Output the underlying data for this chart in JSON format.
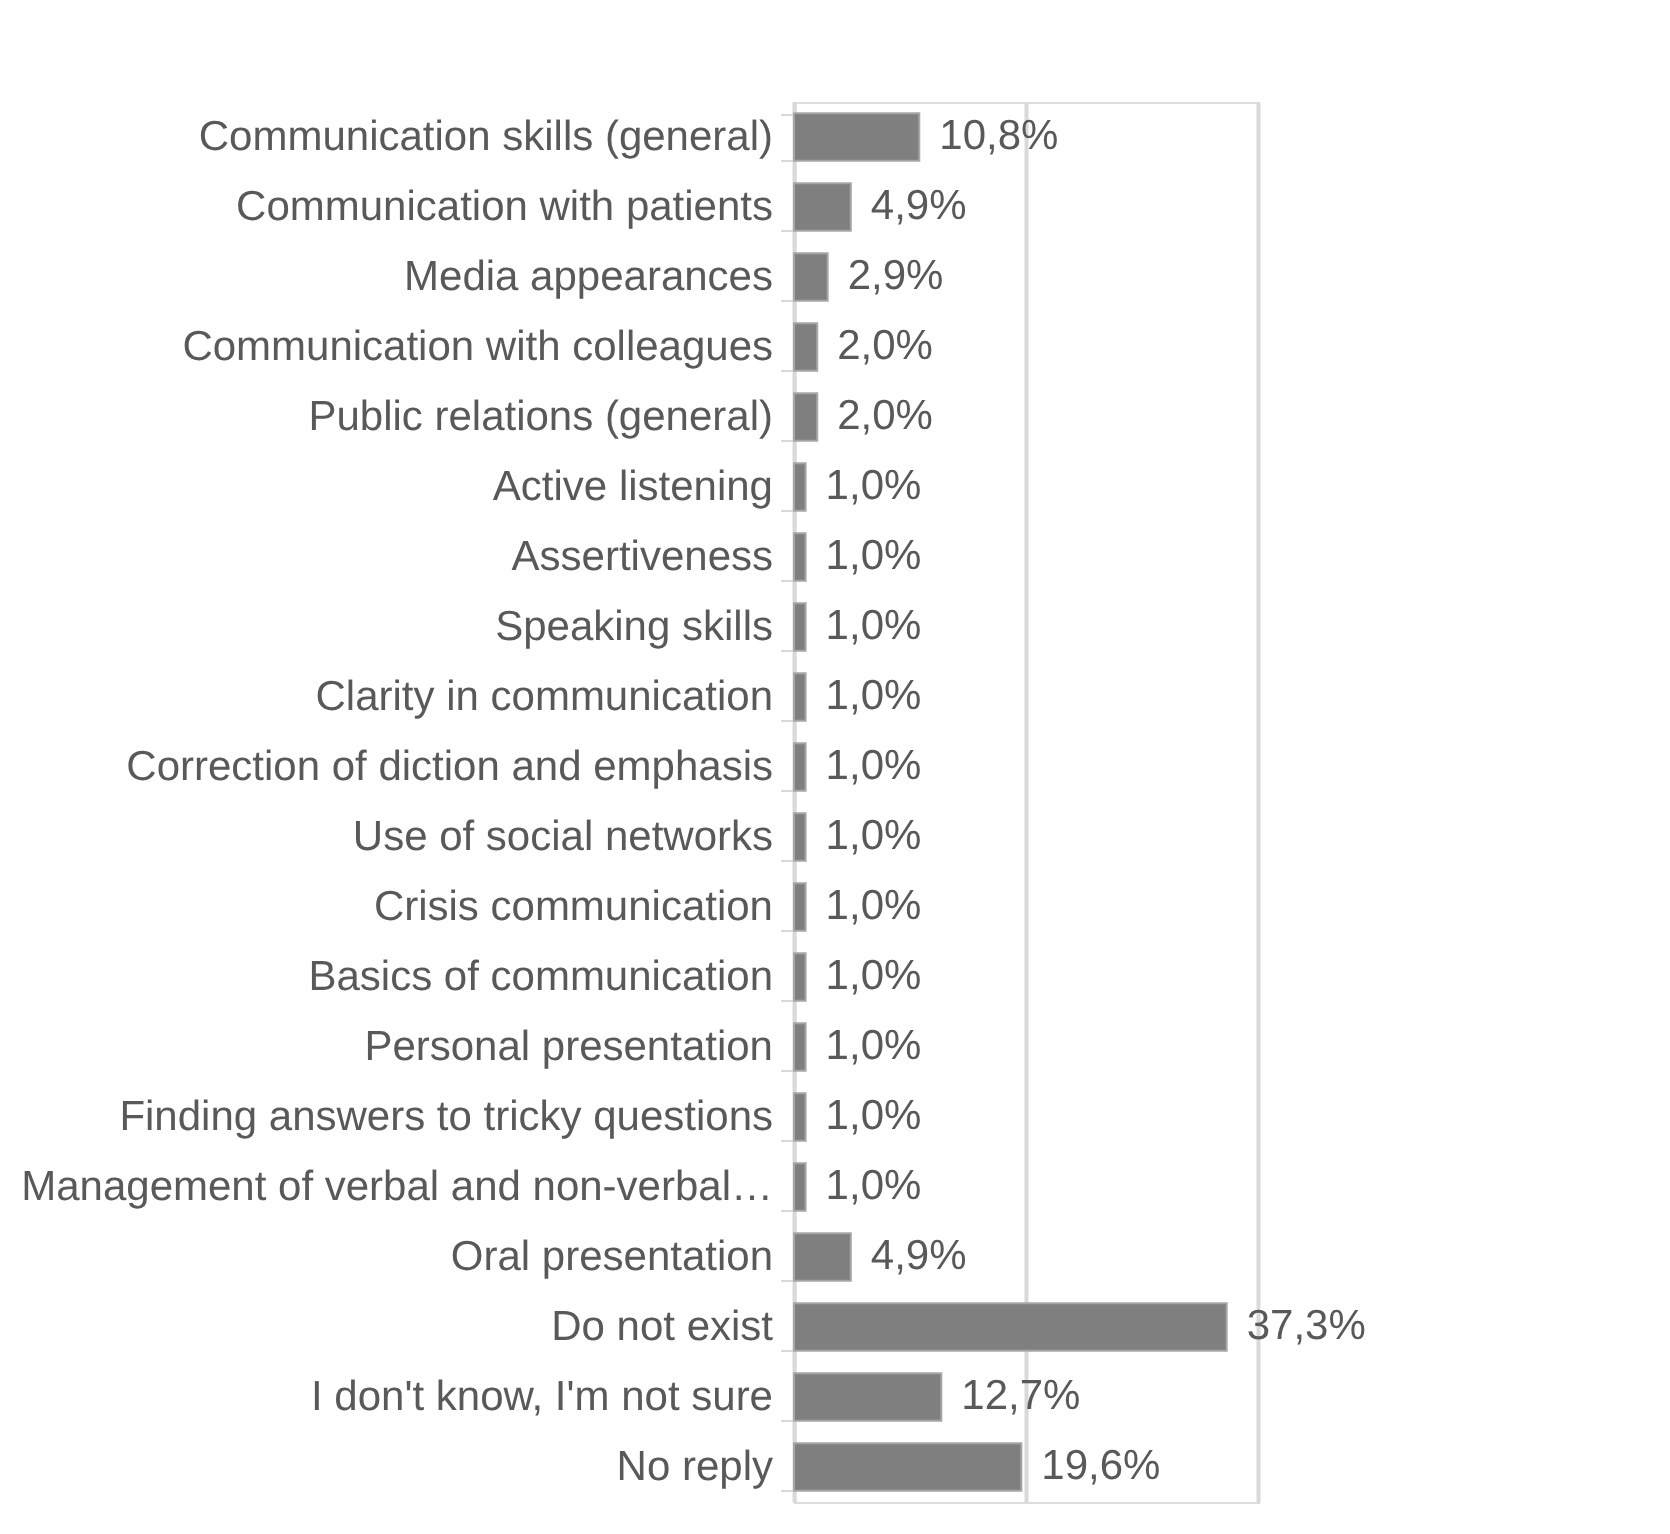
{
  "chart_data": {
    "type": "bar",
    "orientation": "horizontal",
    "categories": [
      "Communication skills (general)",
      "Communication with patients",
      "Media appearances",
      "Communication with colleagues",
      "Public relations (general)",
      "Active listening",
      "Assertiveness",
      "Speaking skills",
      "Clarity in communication",
      "Correction of diction and emphasis",
      "Use of social networks",
      "Crisis communication",
      "Basics of communication",
      "Personal presentation",
      "Finding answers to tricky questions",
      "Management of verbal and non-verbal…",
      "Oral presentation",
      "Do not exist",
      "I don't know, I'm not sure",
      "No reply"
    ],
    "values": [
      10.8,
      4.9,
      2.9,
      2.0,
      2.0,
      1.0,
      1.0,
      1.0,
      1.0,
      1.0,
      1.0,
      1.0,
      1.0,
      1.0,
      1.0,
      1.0,
      4.9,
      37.3,
      12.7,
      19.6
    ],
    "value_labels": [
      "10,8%",
      "4,9%",
      "2,9%",
      "2,0%",
      "2,0%",
      "1,0%",
      "1,0%",
      "1,0%",
      "1,0%",
      "1,0%",
      "1,0%",
      "1,0%",
      "1,0%",
      "1,0%",
      "1,0%",
      "1,0%",
      "4,9%",
      "37,3%",
      "12,7%",
      "19,6%"
    ],
    "color": "#7f7f7f",
    "xlim": [
      0,
      40
    ],
    "xticks": [
      {
        "value": 0,
        "label": null
      },
      {
        "value": 20,
        "label": null
      },
      {
        "value": 40,
        "label": null
      }
    ],
    "grid": "x",
    "tick_labels": "y"
  }
}
